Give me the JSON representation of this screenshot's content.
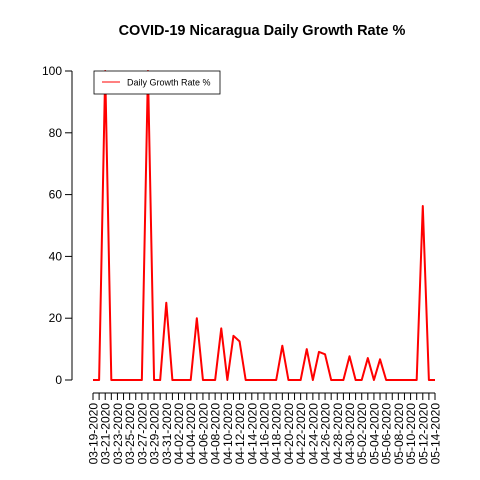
{
  "chart_data": {
    "type": "line",
    "title": "COVID-19 Nicaragua Daily Growth Rate %",
    "xlabel": "",
    "ylabel": "",
    "ylim": [
      0,
      100
    ],
    "yticks": [
      0,
      20,
      40,
      60,
      80,
      100
    ],
    "x": [
      "03-19-2020",
      "03-20-2020",
      "03-21-2020",
      "03-22-2020",
      "03-23-2020",
      "03-24-2020",
      "03-25-2020",
      "03-26-2020",
      "03-27-2020",
      "03-28-2020",
      "03-29-2020",
      "03-30-2020",
      "03-31-2020",
      "04-01-2020",
      "04-02-2020",
      "04-03-2020",
      "04-04-2020",
      "04-05-2020",
      "04-06-2020",
      "04-07-2020",
      "04-08-2020",
      "04-09-2020",
      "04-10-2020",
      "04-11-2020",
      "04-12-2020",
      "04-13-2020",
      "04-14-2020",
      "04-15-2020",
      "04-16-2020",
      "04-17-2020",
      "04-18-2020",
      "04-19-2020",
      "04-20-2020",
      "04-21-2020",
      "04-22-2020",
      "04-23-2020",
      "04-24-2020",
      "04-25-2020",
      "04-26-2020",
      "04-27-2020",
      "04-28-2020",
      "04-29-2020",
      "04-30-2020",
      "05-01-2020",
      "05-02-2020",
      "05-03-2020",
      "05-04-2020",
      "05-05-2020",
      "05-06-2020",
      "05-07-2020",
      "05-08-2020",
      "05-09-2020",
      "05-10-2020",
      "05-11-2020",
      "05-12-2020",
      "05-13-2020",
      "05-14-2020"
    ],
    "xtick_labels": [
      "03-19-2020",
      "03-21-2020",
      "03-23-2020",
      "03-25-2020",
      "03-27-2020",
      "03-29-2020",
      "03-31-2020",
      "04-02-2020",
      "04-04-2020",
      "04-06-2020",
      "04-08-2020",
      "04-10-2020",
      "04-12-2020",
      "04-14-2020",
      "04-16-2020",
      "04-18-2020",
      "04-20-2020",
      "04-22-2020",
      "04-24-2020",
      "04-26-2020",
      "04-28-2020",
      "04-30-2020",
      "05-02-2020",
      "05-04-2020",
      "05-06-2020",
      "05-08-2020",
      "05-10-2020",
      "05-12-2020",
      "05-14-2020"
    ],
    "series": [
      {
        "name": "Daily Growth Rate %",
        "color": "#ff0000",
        "values": [
          0,
          0,
          100,
          0,
          0,
          0,
          0,
          0,
          0,
          100,
          0,
          0,
          25,
          0,
          0,
          0,
          0,
          20,
          0,
          0,
          0,
          16.7,
          0,
          14.3,
          12.5,
          0,
          0,
          0,
          0,
          0,
          0,
          11.1,
          0,
          0,
          0,
          10,
          0,
          9.1,
          8.3,
          0,
          0,
          0,
          7.7,
          0,
          0,
          7.1,
          0,
          6.7,
          0,
          0,
          0,
          0,
          0,
          0,
          56.3,
          0,
          0
        ]
      }
    ],
    "legend": {
      "position": "top-left",
      "entries": [
        "Daily Growth Rate %"
      ]
    },
    "grid": false
  }
}
